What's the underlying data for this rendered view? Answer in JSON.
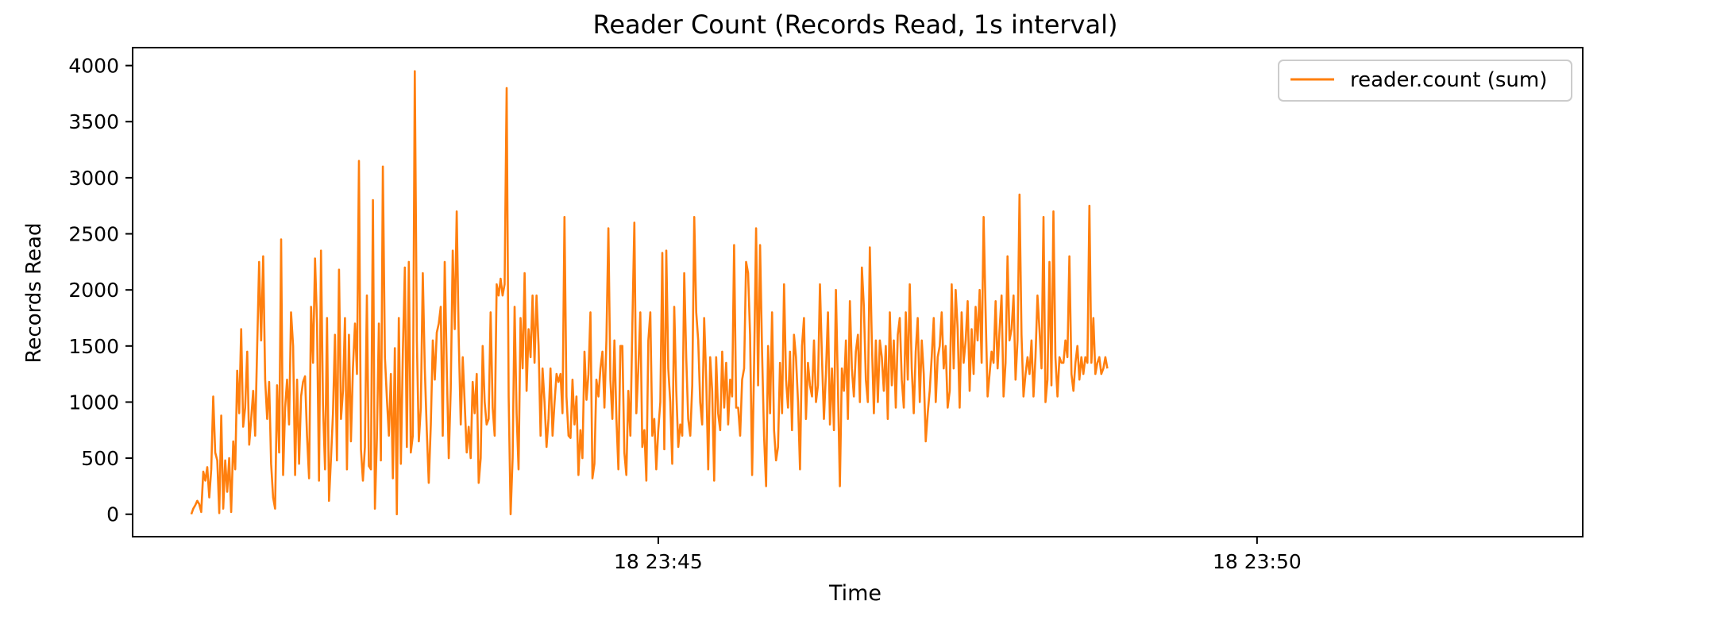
{
  "chart_data": {
    "type": "line",
    "title": "Reader Count (Records Read, 1s interval)",
    "xlabel": "Time",
    "ylabel": "Records Read",
    "x_unit": "minutes after 18 23:40",
    "xlim": [
      40.61,
      52.72
    ],
    "ylim": [
      -200,
      4160
    ],
    "y_ticks": [
      0,
      500,
      1000,
      1500,
      2000,
      2500,
      3000,
      3500,
      4000
    ],
    "x_ticks": [
      {
        "value": 45,
        "label": "18 23:45"
      },
      {
        "value": 50,
        "label": "18 23:50"
      }
    ],
    "grid": false,
    "legend": {
      "position": "top-right"
    },
    "colors": {
      "series": "#ff7f0e",
      "axes": "#000000",
      "background": "#ffffff"
    },
    "series": [
      {
        "name": "reader.count (sum)",
        "color": "#ff7f0e",
        "x_start": 41.1,
        "x_step": 0.0166667,
        "values": [
          0,
          50,
          80,
          120,
          90,
          20,
          380,
          300,
          420,
          150,
          400,
          1050,
          550,
          480,
          10,
          880,
          50,
          480,
          200,
          500,
          20,
          650,
          400,
          1280,
          900,
          1650,
          780,
          950,
          1450,
          620,
          850,
          1100,
          700,
          1480,
          2250,
          1550,
          2300,
          1200,
          850,
          1180,
          450,
          150,
          50,
          1150,
          550,
          2450,
          350,
          950,
          1200,
          800,
          1800,
          1500,
          350,
          1200,
          450,
          1050,
          1180,
          1230,
          700,
          320,
          1850,
          1350,
          2280,
          1700,
          300,
          2350,
          980,
          400,
          1750,
          120,
          500,
          900,
          1600,
          480,
          2180,
          850,
          1100,
          1750,
          400,
          1600,
          650,
          1300,
          1700,
          1250,
          3150,
          580,
          300,
          600,
          1950,
          430,
          400,
          2800,
          50,
          680,
          1700,
          480,
          3100,
          1400,
          1030,
          700,
          1250,
          320,
          1480,
          0,
          1750,
          450,
          1450,
          2200,
          600,
          2250,
          550,
          700,
          3950,
          1550,
          650,
          950,
          2150,
          1300,
          750,
          280,
          800,
          1550,
          1200,
          1620,
          1700,
          1850,
          700,
          2250,
          1300,
          500,
          1120,
          2350,
          1650,
          2700,
          1580,
          800,
          1400,
          980,
          550,
          780,
          500,
          1180,
          900,
          1250,
          280,
          500,
          1500,
          1000,
          800,
          850,
          1800,
          950,
          700,
          2050,
          1950,
          2100,
          1950,
          2050,
          3800,
          1050,
          0,
          500,
          1850,
          900,
          400,
          1750,
          1300,
          2150,
          1100,
          1650,
          1400,
          1950,
          1350,
          1950,
          1500,
          700,
          1300,
          1000,
          600,
          850,
          1300,
          700,
          1000,
          1250,
          1180,
          1250,
          900,
          2650,
          1050,
          700,
          680,
          1200,
          800,
          1050,
          350,
          750,
          500,
          1450,
          1020,
          1250,
          1800,
          320,
          450,
          1200,
          1050,
          1300,
          1450,
          950,
          1550,
          2550,
          1200,
          850,
          1550,
          850,
          400,
          1500,
          1500,
          550,
          350,
          1100,
          700,
          1700,
          2600,
          900,
          1300,
          1800,
          600,
          750,
          300,
          1550,
          1800,
          700,
          850,
          400,
          750,
          1000,
          2330,
          580,
          2350,
          1300,
          1000,
          450,
          1850,
          1100,
          600,
          800,
          700,
          2150,
          1400,
          850,
          700,
          1150,
          2650,
          1800,
          1550,
          1000,
          800,
          1750,
          1200,
          400,
          1400,
          1100,
          300,
          1400,
          900,
          750,
          1450,
          950,
          1350,
          800,
          1200,
          1050,
          2400,
          950,
          950,
          700,
          1200,
          1300,
          2250,
          2150,
          1600,
          350,
          1350,
          2550,
          1150,
          2400,
          1450,
          700,
          250,
          1500,
          900,
          1800,
          750,
          480,
          600,
          1350,
          900,
          2050,
          1200,
          950,
          1450,
          750,
          1600,
          1400,
          1000,
          400,
          1500,
          1750,
          850,
          1350,
          1150,
          1050,
          1550,
          1000,
          1150,
          2050,
          1400,
          850,
          1250,
          1800,
          800,
          1300,
          750,
          2000,
          1150,
          250,
          1300,
          1100,
          1550,
          850,
          1900,
          1300,
          1050,
          1450,
          1600,
          1000,
          2200,
          1850,
          1200,
          1000,
          2380,
          1550,
          900,
          1550,
          1000,
          1550,
          1400,
          1100,
          1500,
          850,
          1800,
          1150,
          1550,
          950,
          1600,
          1750,
          1200,
          950,
          1800,
          1200,
          2050,
          1300,
          900,
          1450,
          1750,
          1000,
          1550,
          1250,
          650,
          900,
          1100,
          1400,
          1750,
          1000,
          1400,
          1500,
          1800,
          1300,
          1500,
          950,
          1100,
          2050,
          1300,
          2000,
          1650,
          950,
          1800,
          1350,
          1550,
          1900,
          1100,
          1650,
          1250,
          1850,
          1550,
          2000,
          1350,
          2650,
          1800,
          1050,
          1250,
          1450,
          1350,
          1900,
          1300,
          1650,
          1950,
          1050,
          1350,
          2300,
          1550,
          1650,
          1950,
          1200,
          1550,
          2850,
          1600,
          1050,
          1250,
          1400,
          1250,
          1550,
          1050,
          1400,
          1950,
          1650,
          1300,
          2650,
          1000,
          1200,
          2250,
          1150,
          2700,
          1400,
          1050,
          1400,
          1350,
          1350,
          1550,
          1400,
          2300,
          1250,
          1100,
          1350,
          1500,
          1200,
          1400,
          1250,
          1400,
          1350,
          2750,
          1350,
          1750,
          1250,
          1350,
          1400,
          1250,
          1300,
          1400,
          1300
        ]
      }
    ]
  }
}
